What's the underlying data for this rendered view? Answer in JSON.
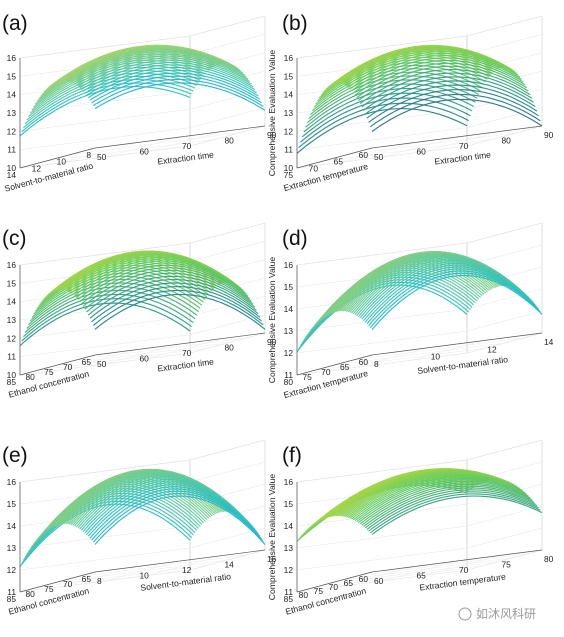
{
  "watermark": "如沐风科研",
  "chart_data": [
    {
      "type": "surface",
      "label": "(a)",
      "xlabel": "Solvent-to-material ratio",
      "ylabel": "Extraction time",
      "zlabel": "Comprehensive Evaluation Value",
      "xlim": [
        8,
        16
      ],
      "ylim": [
        50,
        90
      ],
      "zlim": [
        10,
        16
      ],
      "xticks": [
        "8",
        "10",
        "12",
        "14"
      ],
      "yticks": [
        "50",
        "60",
        "70",
        "80",
        "90"
      ],
      "zticks": [
        "10",
        "11",
        "12",
        "13",
        "14",
        "15",
        "16"
      ],
      "response": {
        "b0": 15.5,
        "bx": 0.35,
        "by": -0.1,
        "bxy": 0.55,
        "bxx": -2.2,
        "byy": -1.45
      }
    },
    {
      "type": "surface",
      "label": "(b)",
      "xlabel": "Extraction temperature",
      "ylabel": "Extraction time",
      "zlabel": "Comprehensive Evaluation Value",
      "xlim": [
        60,
        80
      ],
      "ylim": [
        50,
        90
      ],
      "zlim": [
        10,
        16
      ],
      "xticks": [
        "60",
        "65",
        "70",
        "75"
      ],
      "yticks": [
        "50",
        "60",
        "70",
        "80",
        "90"
      ],
      "zticks": [
        "10",
        "11",
        "12",
        "13",
        "14",
        "15",
        "16"
      ],
      "response": {
        "b0": 15.5,
        "bx": 0.25,
        "by": -0.15,
        "bxy": 0.3,
        "bxx": -3.2,
        "byy": -1.6
      }
    },
    {
      "type": "surface",
      "label": "(c)",
      "xlabel": "Ethanol concentration",
      "ylabel": "Extraction time",
      "zlabel": "Comprehensive Evaluation Value",
      "xlim": [
        65,
        85
      ],
      "ylim": [
        50,
        90
      ],
      "zlim": [
        10,
        16
      ],
      "xticks": [
        "65",
        "70",
        "75",
        "80",
        "85"
      ],
      "yticks": [
        "50",
        "60",
        "70",
        "80",
        "90"
      ],
      "zticks": [
        "10",
        "11",
        "12",
        "13",
        "14",
        "15",
        "16"
      ],
      "response": {
        "b0": 15.6,
        "bx": 0.3,
        "by": -0.4,
        "bxy": 0.2,
        "bxx": -2.6,
        "byy": -1.9
      }
    },
    {
      "type": "surface",
      "label": "(d)",
      "xlabel": "Extraction temperature",
      "ylabel": "Solvent-to-material ratio",
      "zlabel": "Comprehensive Evaluation Value",
      "xlim": [
        60,
        80
      ],
      "ylim": [
        8,
        16
      ],
      "zlim": [
        11,
        16
      ],
      "xticks": [
        "60",
        "65",
        "70",
        "75",
        "80"
      ],
      "yticks": [
        "8",
        "10",
        "12",
        "14"
      ],
      "zticks": [
        "11",
        "12",
        "13",
        "14",
        "15",
        "16"
      ],
      "response": {
        "b0": 15.6,
        "bx": 0.2,
        "by": 0.1,
        "bxy": 0.25,
        "bxx": -1.3,
        "byy": -2.1
      }
    },
    {
      "type": "surface",
      "label": "(e)",
      "xlabel": "Ethanol concentration",
      "ylabel": "Solvent-to-material ratio",
      "zlabel": "Comprehensive Evaluation Value",
      "xlim": [
        65,
        85
      ],
      "ylim": [
        8,
        16
      ],
      "zlim": [
        11,
        16
      ],
      "xticks": [
        "65",
        "70",
        "75",
        "80",
        "85"
      ],
      "yticks": [
        "8",
        "10",
        "12",
        "14",
        "16"
      ],
      "zticks": [
        "11",
        "12",
        "13",
        "14",
        "15",
        "16"
      ],
      "response": {
        "b0": 15.6,
        "bx": 0.25,
        "by": -0.2,
        "bxy": 0.3,
        "bxx": -1.4,
        "byy": -2.2
      }
    },
    {
      "type": "surface",
      "label": "(f)",
      "xlabel": "Ethanol concentration",
      "ylabel": "Extraction temperature",
      "zlabel": "Comprehensive Evaluation Value",
      "xlim": [
        60,
        85
      ],
      "ylim": [
        60,
        80
      ],
      "zlim": [
        11,
        16
      ],
      "xticks": [
        "60",
        "65",
        "70",
        "75",
        "80",
        "85"
      ],
      "yticks": [
        "60",
        "65",
        "70",
        "75",
        "80"
      ],
      "zticks": [
        "11",
        "12",
        "13",
        "14",
        "15",
        "16"
      ],
      "response": {
        "b0": 15.5,
        "bx": 0.6,
        "by": 0.3,
        "bxy": 0.3,
        "bxx": -1.0,
        "byy": -1.2
      }
    }
  ]
}
